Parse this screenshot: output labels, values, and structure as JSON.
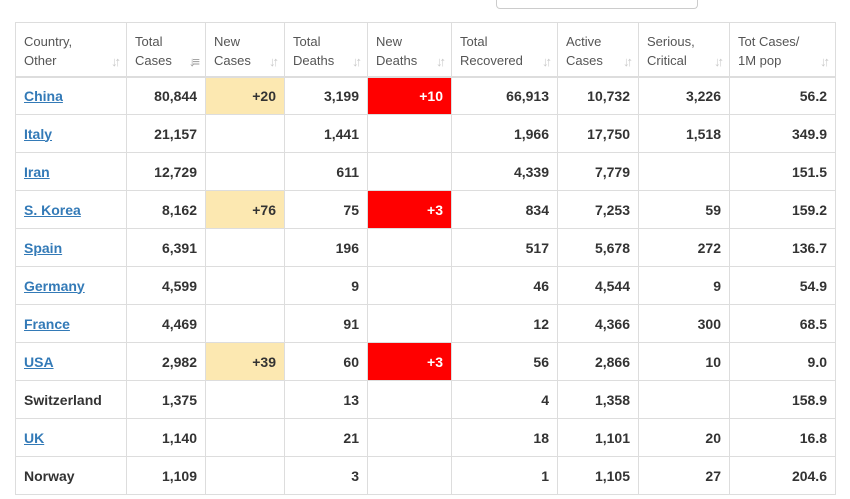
{
  "columns": [
    {
      "line1": "Country,",
      "line2": "Other"
    },
    {
      "line1": "Total",
      "line2": "Cases"
    },
    {
      "line1": "New",
      "line2": "Cases"
    },
    {
      "line1": "Total",
      "line2": "Deaths"
    },
    {
      "line1": "New",
      "line2": "Deaths"
    },
    {
      "line1": "Total",
      "line2": "Recovered"
    },
    {
      "line1": "Active",
      "line2": "Cases"
    },
    {
      "line1": "Serious,",
      "line2": "Critical"
    },
    {
      "line1": "Tot Cases/",
      "line2": "1M pop"
    }
  ],
  "sort_icon": "sort-arrows-icon",
  "colors": {
    "new_cases_highlight": "#fce8b1",
    "new_deaths_highlight": "#ff0000",
    "link": "#337ab7"
  },
  "rows": [
    {
      "country": "China",
      "link": true,
      "total_cases": "80,844",
      "new_cases": "+20",
      "total_deaths": "3,199",
      "new_deaths": "+10",
      "total_recovered": "66,913",
      "active_cases": "10,732",
      "serious_critical": "3,226",
      "cases_per_1m": "56.2"
    },
    {
      "country": "Italy",
      "link": true,
      "total_cases": "21,157",
      "new_cases": "",
      "total_deaths": "1,441",
      "new_deaths": "",
      "total_recovered": "1,966",
      "active_cases": "17,750",
      "serious_critical": "1,518",
      "cases_per_1m": "349.9"
    },
    {
      "country": "Iran",
      "link": true,
      "total_cases": "12,729",
      "new_cases": "",
      "total_deaths": "611",
      "new_deaths": "",
      "total_recovered": "4,339",
      "active_cases": "7,779",
      "serious_critical": "",
      "cases_per_1m": "151.5"
    },
    {
      "country": "S. Korea",
      "link": true,
      "total_cases": "8,162",
      "new_cases": "+76",
      "total_deaths": "75",
      "new_deaths": "+3",
      "total_recovered": "834",
      "active_cases": "7,253",
      "serious_critical": "59",
      "cases_per_1m": "159.2"
    },
    {
      "country": "Spain",
      "link": true,
      "total_cases": "6,391",
      "new_cases": "",
      "total_deaths": "196",
      "new_deaths": "",
      "total_recovered": "517",
      "active_cases": "5,678",
      "serious_critical": "272",
      "cases_per_1m": "136.7"
    },
    {
      "country": "Germany",
      "link": true,
      "total_cases": "4,599",
      "new_cases": "",
      "total_deaths": "9",
      "new_deaths": "",
      "total_recovered": "46",
      "active_cases": "4,544",
      "serious_critical": "9",
      "cases_per_1m": "54.9"
    },
    {
      "country": "France",
      "link": true,
      "total_cases": "4,469",
      "new_cases": "",
      "total_deaths": "91",
      "new_deaths": "",
      "total_recovered": "12",
      "active_cases": "4,366",
      "serious_critical": "300",
      "cases_per_1m": "68.5"
    },
    {
      "country": "USA",
      "link": true,
      "total_cases": "2,982",
      "new_cases": "+39",
      "total_deaths": "60",
      "new_deaths": "+3",
      "total_recovered": "56",
      "active_cases": "2,866",
      "serious_critical": "10",
      "cases_per_1m": "9.0"
    },
    {
      "country": "Switzerland",
      "link": false,
      "total_cases": "1,375",
      "new_cases": "",
      "total_deaths": "13",
      "new_deaths": "",
      "total_recovered": "4",
      "active_cases": "1,358",
      "serious_critical": "",
      "cases_per_1m": "158.9"
    },
    {
      "country": "UK",
      "link": true,
      "total_cases": "1,140",
      "new_cases": "",
      "total_deaths": "21",
      "new_deaths": "",
      "total_recovered": "18",
      "active_cases": "1,101",
      "serious_critical": "20",
      "cases_per_1m": "16.8"
    },
    {
      "country": "Norway",
      "link": false,
      "total_cases": "1,109",
      "new_cases": "",
      "total_deaths": "3",
      "new_deaths": "",
      "total_recovered": "1",
      "active_cases": "1,105",
      "serious_critical": "27",
      "cases_per_1m": "204.6"
    }
  ]
}
